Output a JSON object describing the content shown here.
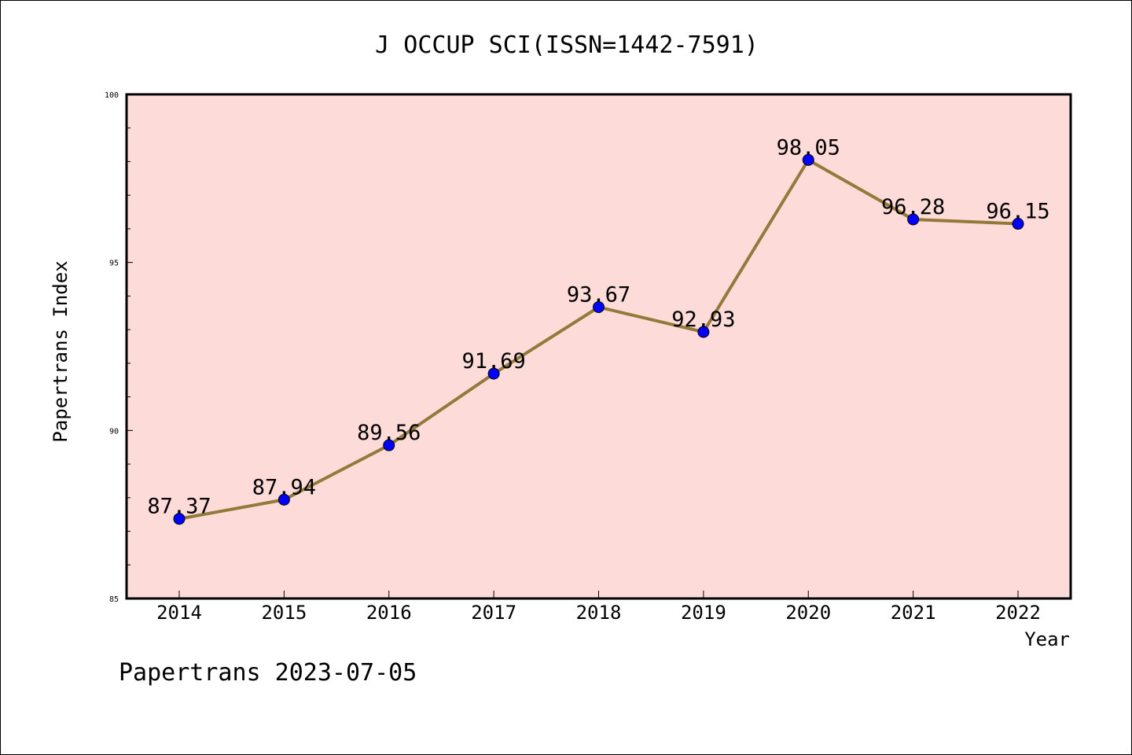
{
  "chart_data": {
    "type": "line",
    "title": "J OCCUP SCI(ISSN=1442-7591)",
    "xlabel": "Year",
    "ylabel": "Papertrans Index",
    "categories": [
      "2014",
      "2015",
      "2016",
      "2017",
      "2018",
      "2019",
      "2020",
      "2021",
      "2022"
    ],
    "series": [
      {
        "values": [
          87.37,
          87.94,
          89.56,
          91.69,
          93.67,
          92.93,
          98.05,
          96.28,
          96.15
        ],
        "labels": [
          "87.37",
          "87.94",
          "89.56",
          "91.69",
          "93.67",
          "92.93",
          "98.05",
          "96.28",
          "96.15"
        ]
      }
    ],
    "ylim": [
      85,
      100
    ],
    "yticks": [
      "85",
      "90",
      "95",
      "100"
    ],
    "grid": false,
    "legend": "none",
    "colors": {
      "plot_background": "#fddbd8",
      "line": "#947a3a",
      "marker": "#0000ff"
    }
  },
  "footer": {
    "text": "Papertrans 2023-07-05"
  }
}
